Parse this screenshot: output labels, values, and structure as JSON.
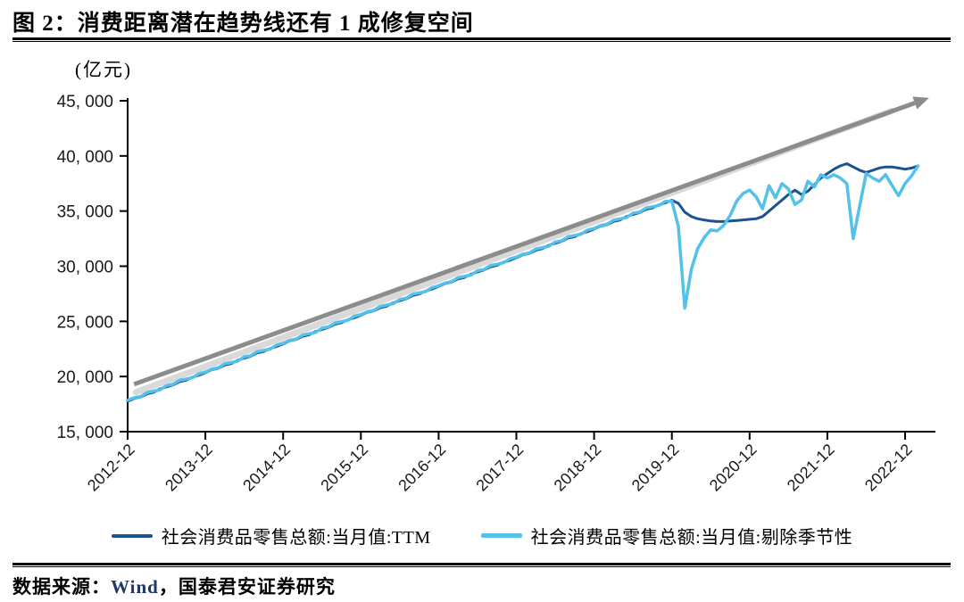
{
  "figure": {
    "title": "图 2：消费距离潜在趋势线还有 1 成修复空间",
    "source_prefix": "数据来源：",
    "source_brand": "Wind",
    "source_suffix": "，国泰君安证券研究"
  },
  "chart_data": {
    "type": "line",
    "title": "消费距离潜在趋势线还有 1 成修复空间",
    "unit_label": "(亿元)",
    "xlabel": "",
    "ylabel": "亿元",
    "ylim": [
      15000,
      45000
    ],
    "xlim_months": [
      0,
      124
    ],
    "grid": false,
    "legend_position": "bottom",
    "x_unit": "month_index_from_2012-12",
    "y_ticks": [
      {
        "value": 15000,
        "label": "15, 000"
      },
      {
        "value": 20000,
        "label": "20, 000"
      },
      {
        "value": 25000,
        "label": "25, 000"
      },
      {
        "value": 30000,
        "label": "30, 000"
      },
      {
        "value": 35000,
        "label": "35, 000"
      },
      {
        "value": 40000,
        "label": "40, 000"
      },
      {
        "value": 45000,
        "label": "45, 000"
      }
    ],
    "x_ticks": [
      {
        "month_index": 0,
        "label": "2012-12"
      },
      {
        "month_index": 12,
        "label": "2013-12"
      },
      {
        "month_index": 24,
        "label": "2014-12"
      },
      {
        "month_index": 36,
        "label": "2015-12"
      },
      {
        "month_index": 48,
        "label": "2016-12"
      },
      {
        "month_index": 60,
        "label": "2017-12"
      },
      {
        "month_index": 72,
        "label": "2018-12"
      },
      {
        "month_index": 84,
        "label": "2019-12"
      },
      {
        "month_index": 96,
        "label": "2020-12"
      },
      {
        "month_index": 108,
        "label": "2021-12"
      },
      {
        "month_index": 120,
        "label": "2022-12"
      }
    ],
    "trend_arrow": {
      "name": "潜在趋势线",
      "color": "#8c8c8c",
      "shadow_color": "#d9d9d9",
      "start": {
        "month_index": 1,
        "value": 19300
      },
      "end": {
        "month_index": 121.5,
        "value": 44800
      }
    },
    "series": [
      {
        "name": "社会消费品零售总额:当月值:TTM",
        "color": "#1b5390",
        "start_month": "2012-12",
        "values": [
          17750,
          18020,
          18140,
          18430,
          18570,
          18880,
          19060,
          19240,
          19540,
          19660,
          19940,
          20120,
          20350,
          20620,
          20750,
          21040,
          21170,
          21480,
          21670,
          21840,
          22140,
          22270,
          22540,
          22720,
          22960,
          23230,
          23350,
          23640,
          23780,
          24080,
          24270,
          24450,
          24740,
          24870,
          25150,
          25330,
          25560,
          25830,
          25960,
          26240,
          26380,
          26690,
          26870,
          27050,
          27350,
          27480,
          27750,
          27930,
          28170,
          28430,
          28560,
          28850,
          28980,
          29290,
          29480,
          29660,
          29950,
          30080,
          30360,
          30530,
          30770,
          31040,
          31160,
          31450,
          31590,
          31900,
          32080,
          32260,
          32560,
          32680,
          32960,
          33140,
          33370,
          33640,
          33770,
          34060,
          34190,
          34500,
          34690,
          34860,
          35160,
          35290,
          35560,
          35740,
          35980,
          35700,
          34900,
          34500,
          34300,
          34200,
          34100,
          34050,
          34050,
          34100,
          34150,
          34200,
          34250,
          34300,
          34500,
          35000,
          35500,
          36000,
          36500,
          36900,
          36500,
          36800,
          37400,
          38000,
          38400,
          38800,
          39100,
          39300,
          39000,
          38700,
          38500,
          38700,
          38900,
          39000,
          39000,
          38900,
          38800,
          38900,
          39100
        ]
      },
      {
        "name": "社会消费品零售总额:当月值:剔除季节性",
        "color": "#54c1ea",
        "start_month": "2012-12",
        "values": [
          17850,
          18070,
          18180,
          18550,
          18670,
          18790,
          19180,
          19290,
          19660,
          19760,
          19890,
          20260,
          20410,
          20670,
          20790,
          21160,
          21270,
          21390,
          21790,
          21890,
          22260,
          22370,
          22490,
          22860,
          23020,
          23280,
          23390,
          23760,
          23880,
          23990,
          24390,
          24500,
          24860,
          24970,
          25100,
          25470,
          25620,
          25880,
          26000,
          26360,
          26480,
          26600,
          26990,
          27100,
          27470,
          27580,
          27700,
          28070,
          28230,
          28480,
          28600,
          28970,
          29080,
          29200,
          29600,
          29710,
          30070,
          30180,
          30310,
          30670,
          30830,
          31090,
          31200,
          31570,
          31690,
          31810,
          32200,
          32310,
          32680,
          32780,
          32910,
          33280,
          33430,
          33690,
          33810,
          34180,
          34290,
          34410,
          34810,
          34910,
          35280,
          35390,
          35510,
          35880,
          35900,
          33600,
          26200,
          29700,
          31600,
          32600,
          33300,
          33200,
          33700,
          34600,
          35900,
          36600,
          36900,
          36300,
          35200,
          37300,
          36200,
          37500,
          37000,
          35600,
          36000,
          37700,
          37200,
          38300,
          38000,
          38300,
          38000,
          37500,
          32500,
          35500,
          38400,
          38000,
          37700,
          38300,
          37300,
          36400,
          37500,
          38200,
          39100
        ]
      }
    ]
  }
}
